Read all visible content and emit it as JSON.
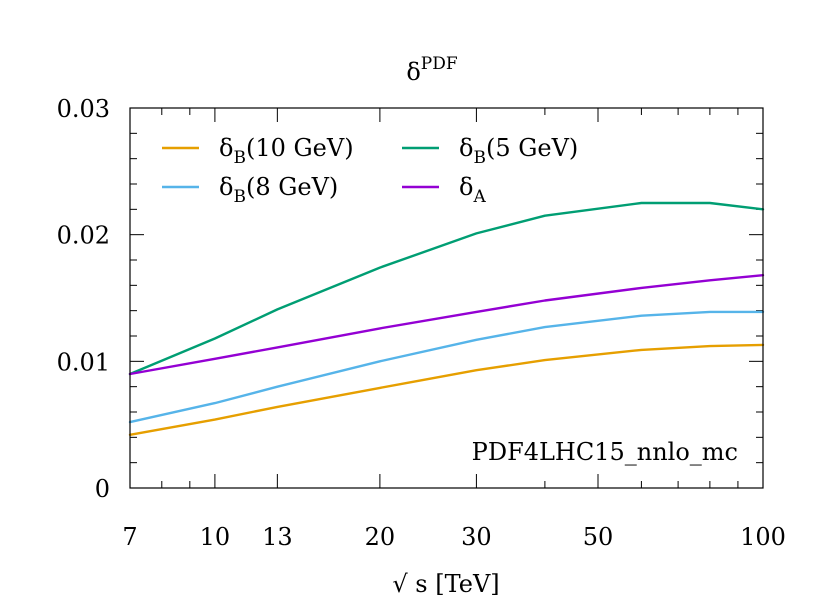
{
  "chart_data": {
    "type": "line",
    "title_base": "δ",
    "title_sup": "PDF",
    "xlabel": "√ s [TeV]",
    "ylabel": "",
    "x_scale": "log",
    "xlim": [
      7,
      100
    ],
    "ylim": [
      0,
      0.03
    ],
    "x_ticks_labeled": [
      "7",
      "10",
      "13",
      "20",
      "30",
      "50",
      "100"
    ],
    "y_ticks_labeled": [
      "0",
      "0.01",
      "0.02",
      "0.03"
    ],
    "annotation": "PDF4LHC15_nnlo_mc",
    "legend_position": "top-left",
    "series": [
      {
        "name_base": "δ",
        "name_sub": "B",
        "name_suffix": "(10 GeV)",
        "color": "#e69f00",
        "x": [
          7,
          10,
          13,
          20,
          30,
          40,
          60,
          80,
          100
        ],
        "y": [
          0.0042,
          0.0054,
          0.0064,
          0.0079,
          0.0093,
          0.0101,
          0.0109,
          0.0112,
          0.0113
        ]
      },
      {
        "name_base": "δ",
        "name_sub": "B",
        "name_suffix": "(8 GeV)",
        "color": "#56b4e9",
        "x": [
          7,
          10,
          13,
          20,
          30,
          40,
          60,
          80,
          100
        ],
        "y": [
          0.0052,
          0.0067,
          0.008,
          0.01,
          0.0117,
          0.0127,
          0.0136,
          0.0139,
          0.0139
        ]
      },
      {
        "name_base": "δ",
        "name_sub": "B",
        "name_suffix": "(5 GeV)",
        "color": "#009e73",
        "x": [
          7,
          10,
          13,
          20,
          30,
          40,
          60,
          80,
          100
        ],
        "y": [
          0.009,
          0.0118,
          0.0141,
          0.0174,
          0.0201,
          0.0215,
          0.0225,
          0.0225,
          0.022
        ]
      },
      {
        "name_base": "δ",
        "name_sub": "A",
        "name_suffix": "",
        "color": "#9400d3",
        "x": [
          7,
          10,
          13,
          20,
          30,
          40,
          60,
          80,
          100
        ],
        "y": [
          0.009,
          0.0102,
          0.0111,
          0.0126,
          0.0139,
          0.0148,
          0.0158,
          0.0164,
          0.0168
        ]
      }
    ]
  }
}
